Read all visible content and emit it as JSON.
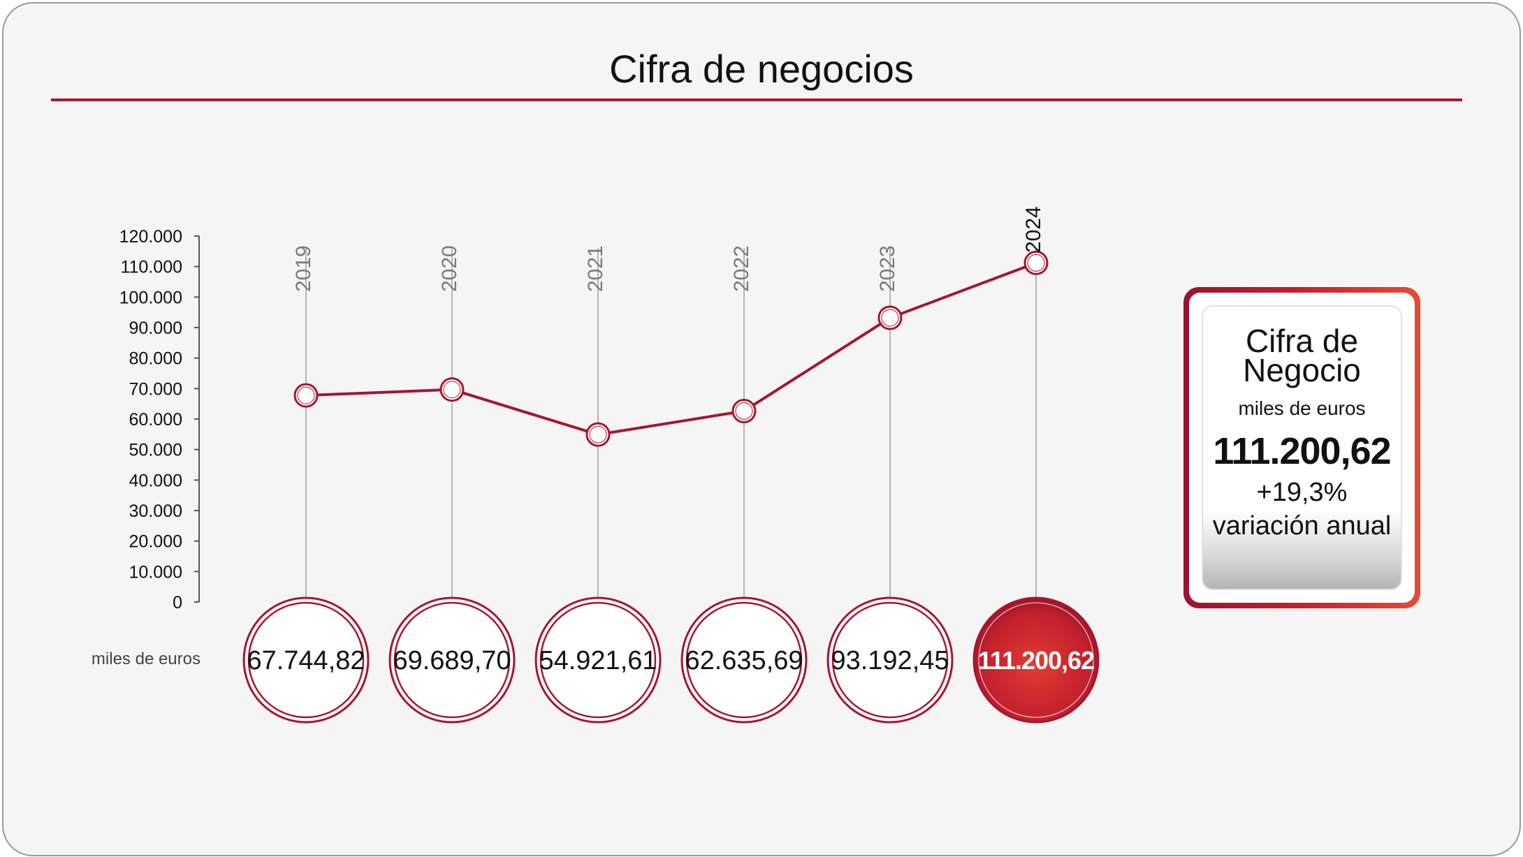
{
  "header": {
    "title": "Cifra de negocios"
  },
  "colors": {
    "accent": "#b3152f",
    "highlight": "#d62a2f",
    "line": "#a8142f"
  },
  "chart_data": {
    "type": "line",
    "categories": [
      "2019",
      "2020",
      "2021",
      "2022",
      "2023",
      "2024"
    ],
    "values": [
      67744.82,
      69689.7,
      54921.61,
      62635.69,
      93192.45,
      111200.62
    ],
    "value_labels": [
      "67.744,82",
      "69.689,70",
      "54.921,61",
      "62.635,69",
      "93.192,45",
      "111.200,62"
    ],
    "highlight_index": 5,
    "ylim": [
      0,
      120000
    ],
    "yticks": [
      0,
      10000,
      20000,
      30000,
      40000,
      50000,
      60000,
      70000,
      80000,
      90000,
      100000,
      110000,
      120000
    ],
    "ytick_labels": [
      "0",
      "10.000",
      "20.000",
      "30.000",
      "40.000",
      "50.000",
      "60.000",
      "70.000",
      "80.000",
      "90.000",
      "100.000",
      "110.000",
      "120.000"
    ],
    "unit_label": "miles de euros",
    "grid": false
  },
  "kpi": {
    "title_line1": "Cifra de",
    "title_line2": "Negocio",
    "unit": "miles de euros",
    "value": "111.200,62",
    "variation": "+19,3%",
    "variation_label": "variación anual"
  }
}
